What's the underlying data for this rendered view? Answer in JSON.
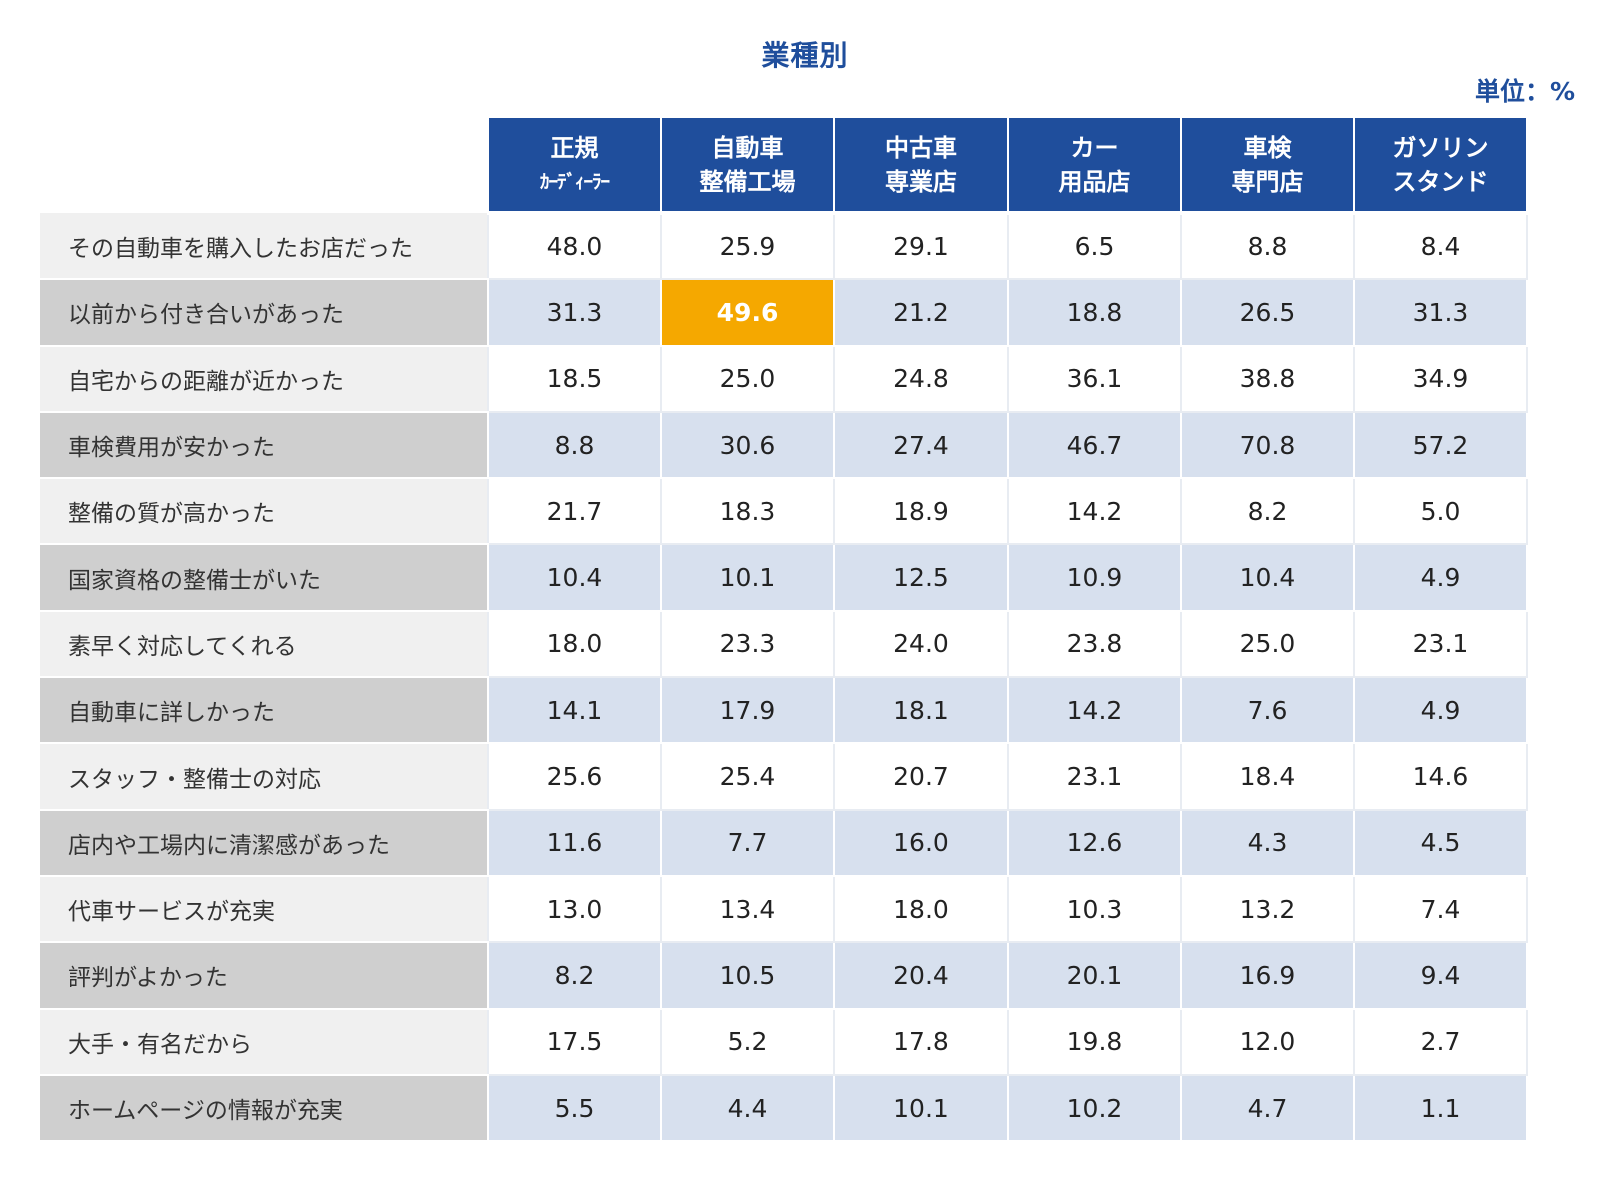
{
  "title": "業種別",
  "unit": "単位：%",
  "chart_data": {
    "type": "table",
    "columns": [
      {
        "line1": "正規",
        "line2": "ｶｰﾃﾞｨｰﾗｰ"
      },
      {
        "line1": "自動車",
        "line2": "整備工場"
      },
      {
        "line1": "中古車",
        "line2": "専業店"
      },
      {
        "line1": "カー",
        "line2": "用品店"
      },
      {
        "line1": "車検",
        "line2": "専門店"
      },
      {
        "line1": "ガソリン",
        "line2": "スタンド"
      }
    ],
    "rows": [
      {
        "label": "その自動車を購入したお店だった",
        "values": [
          "48.0",
          "25.9",
          "29.1",
          "6.5",
          "8.8",
          "8.4"
        ]
      },
      {
        "label": "以前から付き合いがあった",
        "values": [
          "31.3",
          "49.6",
          "21.2",
          "18.8",
          "26.5",
          "31.3"
        ]
      },
      {
        "label": "自宅からの距離が近かった",
        "values": [
          "18.5",
          "25.0",
          "24.8",
          "36.1",
          "38.8",
          "34.9"
        ]
      },
      {
        "label": "車検費用が安かった",
        "values": [
          "8.8",
          "30.6",
          "27.4",
          "46.7",
          "70.8",
          "57.2"
        ]
      },
      {
        "label": "整備の質が高かった",
        "values": [
          "21.7",
          "18.3",
          "18.9",
          "14.2",
          "8.2",
          "5.0"
        ]
      },
      {
        "label": "国家資格の整備士がいた",
        "values": [
          "10.4",
          "10.1",
          "12.5",
          "10.9",
          "10.4",
          "4.9"
        ]
      },
      {
        "label": "素早く対応してくれる",
        "values": [
          "18.0",
          "23.3",
          "24.0",
          "23.8",
          "25.0",
          "23.1"
        ]
      },
      {
        "label": "自動車に詳しかった",
        "values": [
          "14.1",
          "17.9",
          "18.1",
          "14.2",
          "7.6",
          "4.9"
        ]
      },
      {
        "label": "スタッフ・整備士の対応",
        "values": [
          "25.6",
          "25.4",
          "20.7",
          "23.1",
          "18.4",
          "14.6"
        ]
      },
      {
        "label": "店内や工場内に清潔感があった",
        "values": [
          "11.6",
          "7.7",
          "16.0",
          "12.6",
          "4.3",
          "4.5"
        ]
      },
      {
        "label": "代車サービスが充実",
        "values": [
          "13.0",
          "13.4",
          "18.0",
          "10.3",
          "13.2",
          "7.4"
        ]
      },
      {
        "label": "評判がよかった",
        "values": [
          "8.2",
          "10.5",
          "20.4",
          "20.1",
          "16.9",
          "9.4"
        ]
      },
      {
        "label": "大手・有名だから",
        "values": [
          "17.5",
          "5.2",
          "17.8",
          "19.8",
          "12.0",
          "2.7"
        ]
      },
      {
        "label": "ホームページの情報が充実",
        "values": [
          "5.5",
          "4.4",
          "10.1",
          "10.2",
          "4.7",
          "1.1"
        ]
      }
    ],
    "highlight": {
      "row": 1,
      "col": 1,
      "color": "#f5a800"
    },
    "colors": {
      "header": "#1f4e9c",
      "label_odd": "#f0f0f0",
      "label_even": "#cfcfcf",
      "value_even": "#d7e0ee",
      "value_odd": "#ffffff"
    }
  }
}
